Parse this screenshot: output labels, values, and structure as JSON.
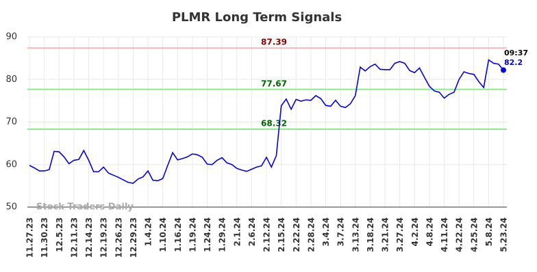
{
  "chart_data": {
    "type": "line",
    "title": "PLMR Long Term Signals",
    "categories": [
      "11.27.23",
      null,
      null,
      "11.30.23",
      null,
      null,
      "12.5.23",
      null,
      null,
      "12.11.23",
      null,
      null,
      "12.14.23",
      null,
      null,
      "12.19.23",
      null,
      null,
      "12.26.23",
      null,
      null,
      "12.29.23",
      null,
      null,
      "1.4.24",
      null,
      null,
      "1.10.24",
      null,
      null,
      "1.16.24",
      null,
      null,
      "1.19.24",
      null,
      null,
      "1.24.24",
      null,
      null,
      "1.29.24",
      null,
      null,
      "2.1.24",
      null,
      null,
      "2.6.24",
      null,
      null,
      "2.12.24",
      null,
      null,
      "2.15.24",
      null,
      null,
      "2.22.24",
      null,
      null,
      "2.28.24",
      null,
      null,
      "3.4.24",
      null,
      null,
      "3.7.24",
      null,
      null,
      "3.13.24",
      null,
      null,
      "3.18.24",
      null,
      null,
      "3.21.24",
      null,
      null,
      "3.27.24",
      null,
      null,
      "4.2.24",
      null,
      null,
      "4.8.24",
      null,
      null,
      "4.11.24",
      null,
      null,
      "4.22.24",
      null,
      null,
      "4.25.24",
      null,
      null,
      "5.8.24",
      null,
      null,
      "5.23.24"
    ],
    "values": [
      59.8,
      59.2,
      58.5,
      58.5,
      58.8,
      63.1,
      63.0,
      61.8,
      60.2,
      61.0,
      61.2,
      63.3,
      61.0,
      58.3,
      58.3,
      59.4,
      58.0,
      57.5,
      57.0,
      56.4,
      55.8,
      55.6,
      56.6,
      57.1,
      58.5,
      56.3,
      56.2,
      56.7,
      59.8,
      62.8,
      61.1,
      61.4,
      61.8,
      62.5,
      62.3,
      61.7,
      60.1,
      60.0,
      61.0,
      61.6,
      60.4,
      60.0,
      59.1,
      58.7,
      58.4,
      58.9,
      59.4,
      59.7,
      61.7,
      59.4,
      62.1,
      73.8,
      75.4,
      73.0,
      75.3,
      74.9,
      75.2,
      75.1,
      76.2,
      75.5,
      73.9,
      73.7,
      75.1,
      73.7,
      73.4,
      74.3,
      76.2,
      82.9,
      82.0,
      83.0,
      83.6,
      82.4,
      82.3,
      82.3,
      83.8,
      84.2,
      83.8,
      82.1,
      81.6,
      82.7,
      80.5,
      78.4,
      77.3,
      77.0,
      75.6,
      76.5,
      77.0,
      80.0,
      81.8,
      81.4,
      81.2,
      79.5,
      78.1,
      84.6,
      83.8,
      83.6,
      82.2
    ],
    "color": "#0000ee",
    "ylim": [
      50,
      90
    ],
    "yticks": [
      50,
      60,
      70,
      80,
      90
    ],
    "grid": true,
    "hlines": [
      {
        "value": 87.39,
        "color": "#f5b8b8",
        "label_color": "#8b0000"
      },
      {
        "value": 77.67,
        "color": "#90e890",
        "label_color": "#006400"
      },
      {
        "value": 68.32,
        "color": "#90e890",
        "label_color": "#006400"
      }
    ],
    "last_time": "09:37",
    "watermark": "Stock Traders Daily"
  }
}
